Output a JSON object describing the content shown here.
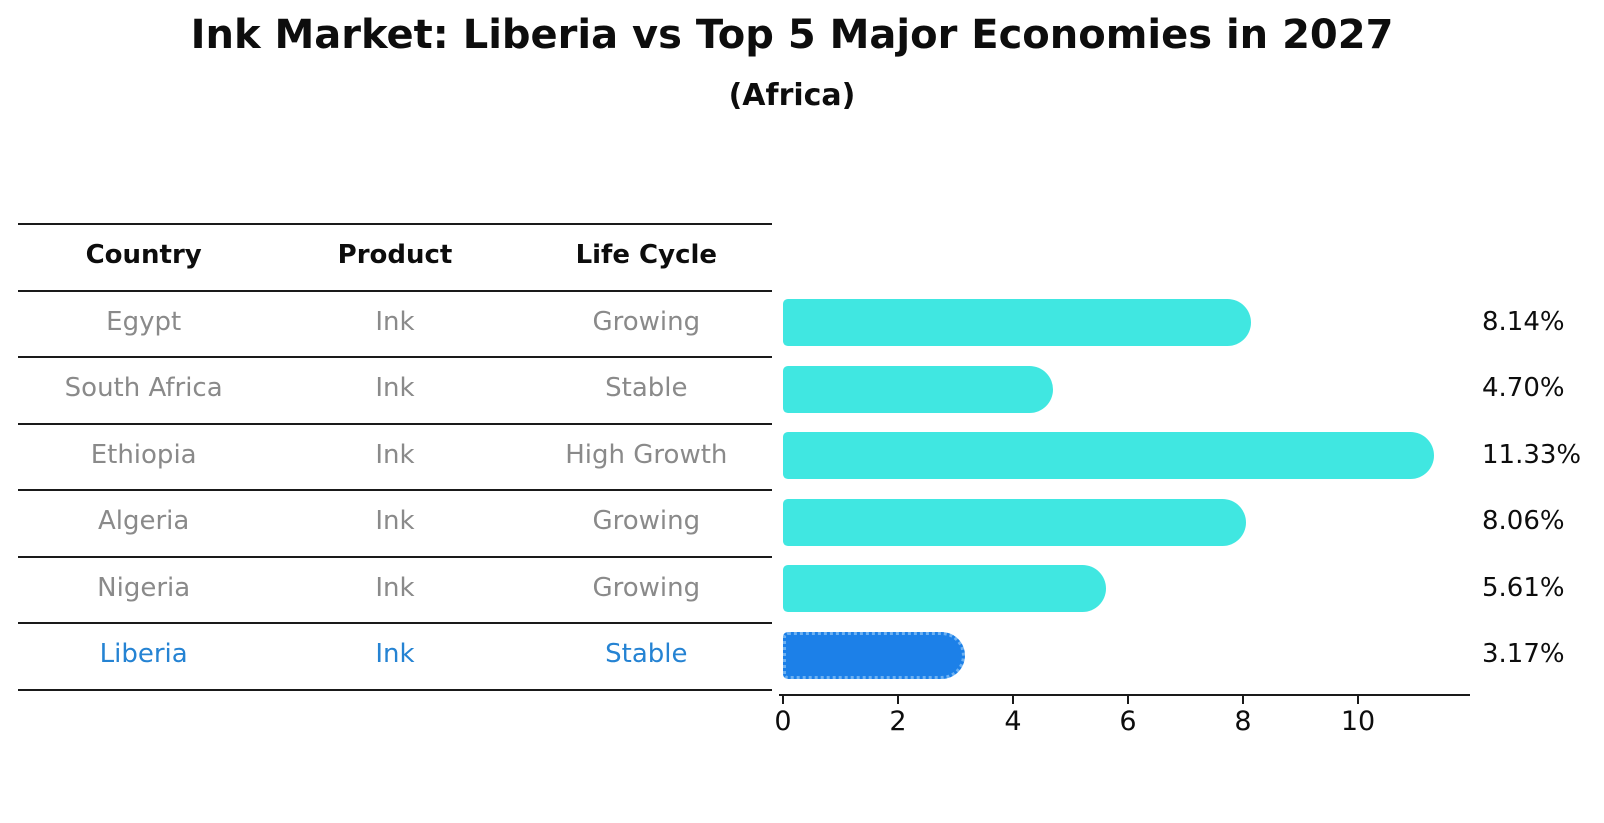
{
  "page": {
    "title": "Ink Market: Liberia vs Top 5 Major Economies in 2027",
    "subtitle": "(Africa)"
  },
  "table": {
    "headers": [
      "Country",
      "Product",
      "Life Cycle"
    ],
    "rows": [
      {
        "country": "Egypt",
        "product": "Ink",
        "life_cycle": "Growing"
      },
      {
        "country": "South Africa",
        "product": "Ink",
        "life_cycle": "Stable"
      },
      {
        "country": "Ethiopia",
        "product": "Ink",
        "life_cycle": "High Growth"
      },
      {
        "country": "Algeria",
        "product": "Ink",
        "life_cycle": "Growing"
      },
      {
        "country": "Nigeria",
        "product": "Ink",
        "life_cycle": "Growing"
      },
      {
        "country": "Liberia",
        "product": "Ink",
        "life_cycle": "Stable"
      }
    ]
  },
  "chart_data": {
    "type": "bar",
    "orientation": "horizontal",
    "title": "Ink Market: Liberia vs Top 5 Major Economies in 2027",
    "subtitle": "(Africa)",
    "categories": [
      "Egypt",
      "South Africa",
      "Ethiopia",
      "Algeria",
      "Nigeria",
      "Liberia"
    ],
    "values": [
      8.14,
      4.7,
      11.33,
      8.06,
      5.61,
      3.17
    ],
    "value_labels": [
      "8.14%",
      "4.70%",
      "11.33%",
      "8.06%",
      "5.61%",
      "3.17%"
    ],
    "xticks": [
      0,
      2,
      4,
      6,
      8,
      10
    ],
    "xlim": [
      0,
      11.95
    ],
    "grid": false,
    "legend": "none",
    "highlight_index": 5,
    "colors": {
      "bar_default": "#40e7e1",
      "bar_highlight": "#1c80e8",
      "highlight_border": "#6db1f2",
      "highlight_text": "#2583d3",
      "table_text": "#8a8a8a",
      "heading_text": "#0d0d0d"
    }
  }
}
